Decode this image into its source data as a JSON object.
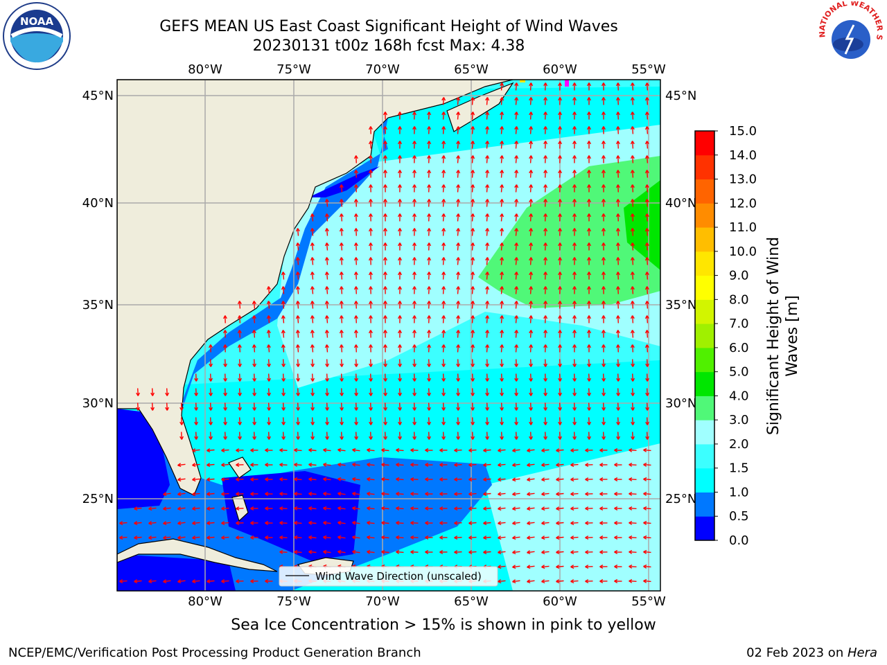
{
  "title": {
    "line1": "GEFS MEAN US East Coast Significant Height of Wind Waves",
    "line2": "20230131 t00z 168h fcst   Max: 4.38"
  },
  "map": {
    "lon_labels": [
      "80°W",
      "75°W",
      "70°W",
      "65°W",
      "60°W",
      "55°W"
    ],
    "lat_labels": [
      "45°N",
      "40°N",
      "35°N",
      "30°N",
      "25°N"
    ],
    "legend_label": "Wind Wave Direction (unscaled)",
    "land_color": "#efeddc",
    "arrow_color": "#ff0000"
  },
  "colorbar": {
    "label": "Significant Height of Wind Waves [m]",
    "label_line1": "Significant Height of Wind",
    "label_line2": "Waves [m]",
    "ticks": [
      "0.0",
      "0.5",
      "1.0",
      "1.5",
      "2.0",
      "3.0",
      "4.0",
      "5.0",
      "6.0",
      "7.0",
      "8.0",
      "9.0",
      "10.0",
      "11.0",
      "12.0",
      "13.0",
      "14.0",
      "15.0"
    ],
    "colors": [
      "#0000ff",
      "#0078ff",
      "#00ffff",
      "#3cffff",
      "#a0ffff",
      "#50f878",
      "#00e600",
      "#50f000",
      "#a0f000",
      "#d2f500",
      "#ffff00",
      "#ffe600",
      "#ffbe00",
      "#ff8c00",
      "#ff6400",
      "#ff3200",
      "#ff0000"
    ]
  },
  "footnote": "Sea Ice Concentration > 15% is shown in pink to yellow",
  "footer": {
    "left": "NCEP/EMC/Verification Post Processing Product Generation Branch",
    "right_prefix": "02 Feb 2023 on ",
    "right_host": "Hera"
  },
  "logos": {
    "left": "NOAA",
    "right": "NATIONAL WEATHER SERVICE"
  }
}
